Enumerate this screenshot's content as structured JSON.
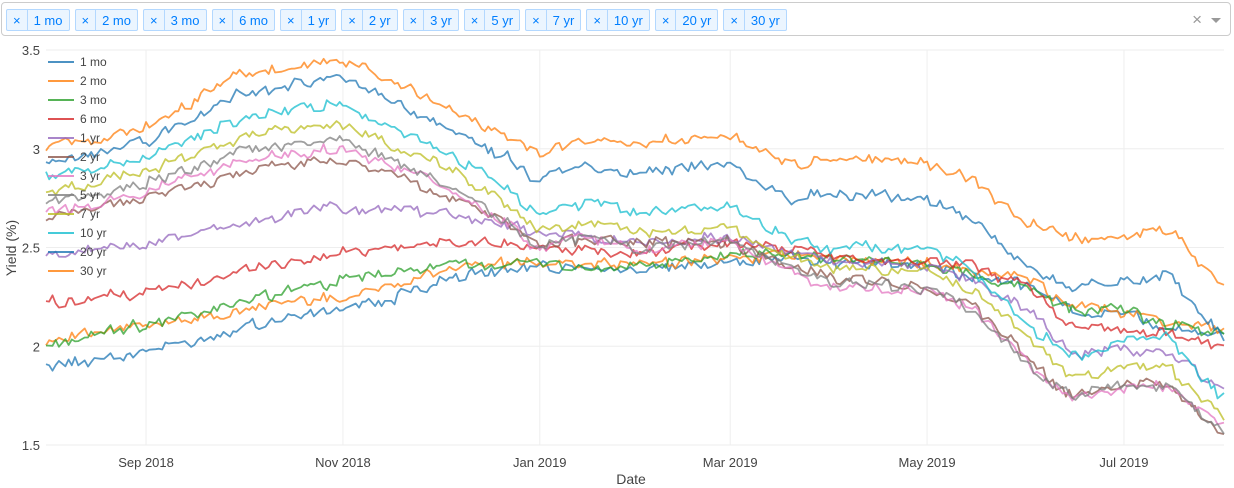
{
  "selector": {
    "tags": [
      "1 mo",
      "2 mo",
      "3 mo",
      "6 mo",
      "1 yr",
      "2 yr",
      "3 yr",
      "5 yr",
      "7 yr",
      "10 yr",
      "20 yr",
      "30 yr"
    ],
    "remove_glyph": "×",
    "clear_glyph": "×"
  },
  "chart_data": {
    "type": "line",
    "xlabel": "Date",
    "ylabel": "Yield (%)",
    "xlim": [
      "2018-08-01",
      "2019-08-01"
    ],
    "ylim": [
      1.5,
      3.5
    ],
    "yticks": [
      1.5,
      2,
      2.5,
      3,
      3.5
    ],
    "ytick_labels": [
      "1.5",
      "2",
      "2.5",
      "3",
      "3.5"
    ],
    "xticks": [
      "2018-09-01",
      "2018-11-01",
      "2019-01-01",
      "2019-03-01",
      "2019-05-01",
      "2019-07-01"
    ],
    "xtick_labels": [
      "Sep 2018",
      "Nov 2018",
      "Jan 2019",
      "Mar 2019",
      "May 2019",
      "Jul 2019"
    ],
    "grid": true,
    "legend_position": "top-left",
    "x": [
      "2018-08-01",
      "2018-09-01",
      "2018-10-01",
      "2018-10-15",
      "2018-11-01",
      "2018-11-15",
      "2018-12-01",
      "2018-12-20",
      "2019-01-01",
      "2019-01-15",
      "2019-02-01",
      "2019-03-01",
      "2019-03-20",
      "2019-04-01",
      "2019-05-01",
      "2019-05-15",
      "2019-06-01",
      "2019-06-15",
      "2019-07-01",
      "2019-07-15",
      "2019-08-01"
    ],
    "series": [
      {
        "name": "1 mo",
        "color": "#1f77b4",
        "values": [
          1.9,
          1.97,
          2.1,
          2.15,
          2.2,
          2.23,
          2.33,
          2.38,
          2.4,
          2.4,
          2.39,
          2.43,
          2.45,
          2.43,
          2.42,
          2.35,
          2.32,
          2.18,
          2.17,
          2.08,
          2.07
        ]
      },
      {
        "name": "2 mo",
        "color": "#ff7f0e",
        "values": [
          2.03,
          2.1,
          2.18,
          2.23,
          2.25,
          2.3,
          2.38,
          2.42,
          2.42,
          2.41,
          2.41,
          2.45,
          2.46,
          2.44,
          2.43,
          2.38,
          2.35,
          2.2,
          2.18,
          2.12,
          2.08
        ]
      },
      {
        "name": "3 mo",
        "color": "#2ca02c",
        "values": [
          2.0,
          2.11,
          2.22,
          2.28,
          2.33,
          2.37,
          2.4,
          2.42,
          2.42,
          2.4,
          2.4,
          2.46,
          2.47,
          2.44,
          2.42,
          2.36,
          2.3,
          2.18,
          2.2,
          2.1,
          2.06
        ]
      },
      {
        "name": "6 mo",
        "color": "#d62728",
        "values": [
          2.22,
          2.27,
          2.38,
          2.43,
          2.48,
          2.5,
          2.52,
          2.52,
          2.5,
          2.48,
          2.47,
          2.52,
          2.5,
          2.45,
          2.43,
          2.4,
          2.32,
          2.1,
          2.08,
          2.07,
          1.99
        ]
      },
      {
        "name": "1 yr",
        "color": "#9467bd",
        "values": [
          2.45,
          2.52,
          2.62,
          2.67,
          2.7,
          2.7,
          2.68,
          2.62,
          2.58,
          2.55,
          2.53,
          2.55,
          2.48,
          2.43,
          2.4,
          2.34,
          2.2,
          1.95,
          1.98,
          1.96,
          1.78
        ]
      },
      {
        "name": "2 yr",
        "color": "#8c564b",
        "values": [
          2.64,
          2.75,
          2.88,
          2.92,
          2.95,
          2.88,
          2.78,
          2.65,
          2.5,
          2.55,
          2.52,
          2.53,
          2.4,
          2.35,
          2.3,
          2.22,
          1.95,
          1.75,
          1.8,
          1.82,
          1.55
        ]
      },
      {
        "name": "3 yr",
        "color": "#e377c2",
        "values": [
          2.68,
          2.78,
          2.94,
          2.98,
          3.0,
          2.92,
          2.82,
          2.65,
          2.48,
          2.55,
          2.5,
          2.53,
          2.38,
          2.3,
          2.28,
          2.2,
          1.92,
          1.72,
          1.78,
          1.8,
          1.6
        ]
      },
      {
        "name": "5 yr",
        "color": "#7f7f7f",
        "values": [
          2.72,
          2.82,
          2.98,
          3.02,
          3.05,
          2.95,
          2.85,
          2.65,
          2.5,
          2.56,
          2.5,
          2.53,
          2.4,
          2.32,
          2.29,
          2.2,
          1.92,
          1.75,
          1.8,
          1.8,
          1.58
        ]
      },
      {
        "name": "7 yr",
        "color": "#bcbd22",
        "values": [
          2.78,
          2.88,
          3.05,
          3.1,
          3.12,
          3.03,
          2.93,
          2.75,
          2.58,
          2.62,
          2.58,
          2.6,
          2.45,
          2.4,
          2.38,
          2.3,
          2.05,
          1.85,
          1.88,
          1.9,
          1.63
        ]
      },
      {
        "name": "10 yr",
        "color": "#17becf",
        "values": [
          2.85,
          2.96,
          3.15,
          3.2,
          3.22,
          3.12,
          3.0,
          2.82,
          2.68,
          2.72,
          2.68,
          2.7,
          2.55,
          2.5,
          2.5,
          2.4,
          2.12,
          1.95,
          2.02,
          2.05,
          1.75
        ]
      },
      {
        "name": "20 yr",
        "color": "#1f77b4",
        "values": [
          2.92,
          3.03,
          3.28,
          3.32,
          3.35,
          3.25,
          3.12,
          2.98,
          2.85,
          2.9,
          2.88,
          2.92,
          2.75,
          2.78,
          2.75,
          2.65,
          2.4,
          2.3,
          2.32,
          2.37,
          2.05
        ]
      },
      {
        "name": "30 yr",
        "color": "#ff7f0e",
        "values": [
          3.0,
          3.1,
          3.38,
          3.4,
          3.45,
          3.35,
          3.22,
          3.08,
          2.97,
          3.05,
          3.02,
          3.08,
          2.92,
          2.95,
          2.93,
          2.85,
          2.62,
          2.55,
          2.55,
          2.6,
          2.3
        ]
      }
    ]
  }
}
